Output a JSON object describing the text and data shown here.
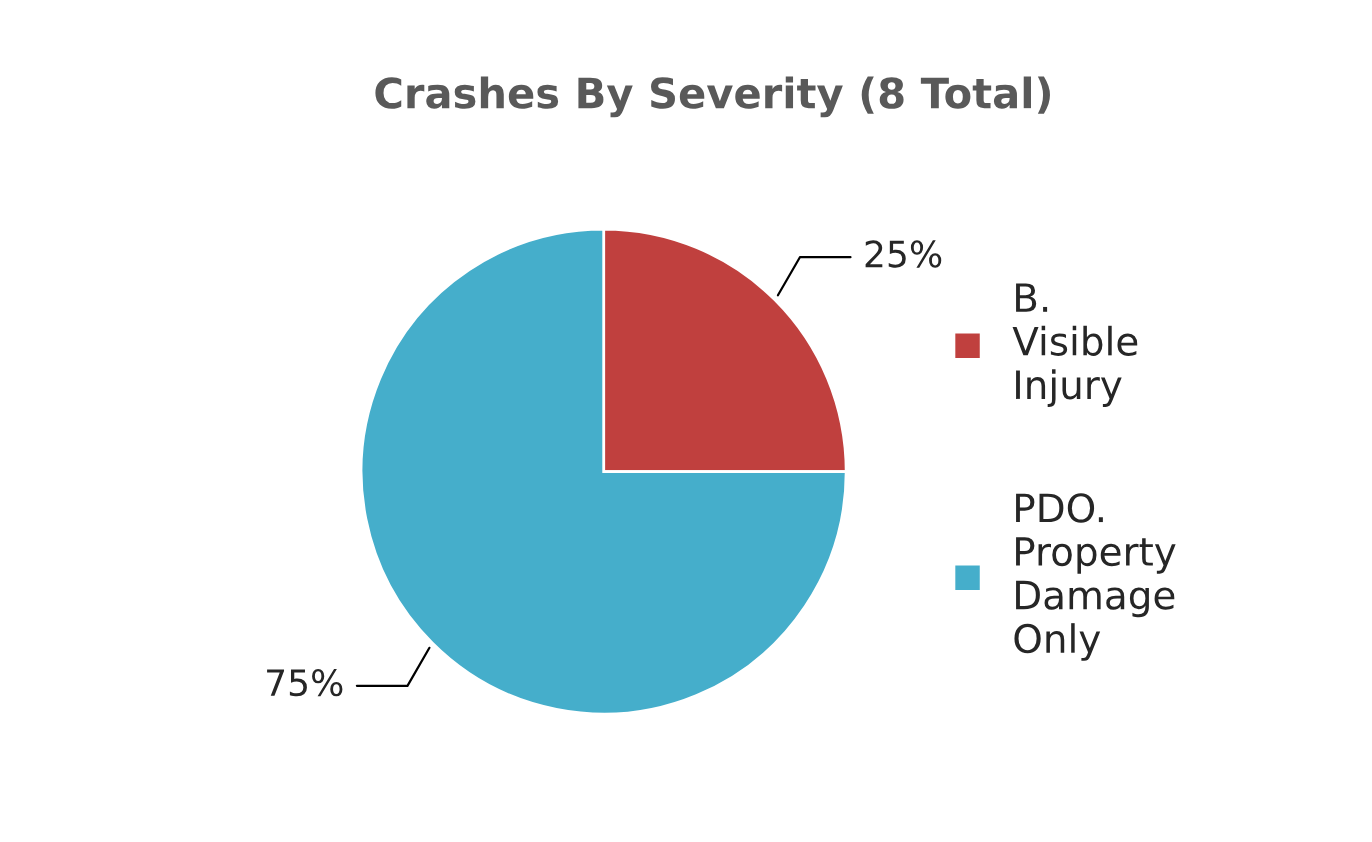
{
  "chart_data": {
    "type": "pie",
    "title": "Crashes By Severity (8 Total)",
    "categories": [
      "B. Visible Injury",
      "PDO. Property Damage Only"
    ],
    "values": [
      25,
      75
    ],
    "colors": [
      "#c0403e",
      "#45aecb"
    ],
    "value_labels": [
      "25%",
      "75%"
    ],
    "legend": "right"
  }
}
